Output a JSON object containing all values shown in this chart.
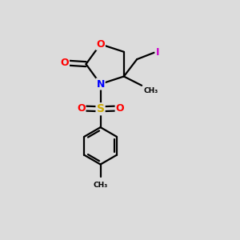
{
  "background_color": "#dcdcdc",
  "bond_color": "#000000",
  "atom_colors": {
    "O": "#ff0000",
    "N": "#0000ff",
    "S": "#ccaa00",
    "I": "#cc00cc",
    "C": "#000000"
  },
  "figsize": [
    3.0,
    3.0
  ],
  "dpi": 100
}
